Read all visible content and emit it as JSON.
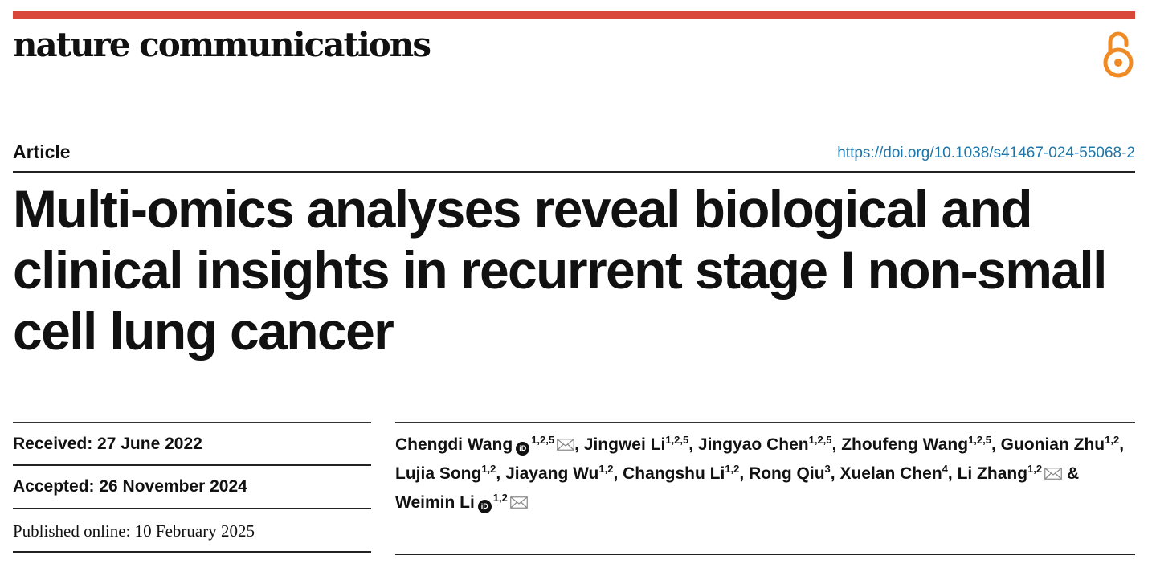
{
  "journal": {
    "name": "nature communications"
  },
  "header": {
    "article_type": "Article",
    "doi": "https://doi.org/10.1038/s41467-024-55068-2"
  },
  "title": "Multi-omics analyses reveal biological and clinical insights in recurrent stage I non-small cell lung cancer",
  "dates": {
    "received": "Received: 27 June 2022",
    "accepted": "Accepted: 26 November 2024",
    "published": "Published online: 10 February 2025"
  },
  "authors": [
    {
      "name": "Chengdi Wang",
      "affil": "1,2,5",
      "orcid": true,
      "corresponding": true
    },
    {
      "name": "Jingwei Li",
      "affil": "1,2,5",
      "orcid": false,
      "corresponding": false
    },
    {
      "name": "Jingyao Chen",
      "affil": "1,2,5",
      "orcid": false,
      "corresponding": false
    },
    {
      "name": "Zhoufeng Wang",
      "affil": "1,2,5",
      "orcid": false,
      "corresponding": false
    },
    {
      "name": "Guonian Zhu",
      "affil": "1,2",
      "orcid": false,
      "corresponding": false
    },
    {
      "name": "Lujia Song",
      "affil": "1,2",
      "orcid": false,
      "corresponding": false
    },
    {
      "name": "Jiayang Wu",
      "affil": "1,2",
      "orcid": false,
      "corresponding": false
    },
    {
      "name": "Changshu Li",
      "affil": "1,2",
      "orcid": false,
      "corresponding": false
    },
    {
      "name": "Rong Qiu",
      "affil": "3",
      "orcid": false,
      "corresponding": false
    },
    {
      "name": "Xuelan Chen",
      "affil": "4",
      "orcid": false,
      "corresponding": false
    },
    {
      "name": "Li Zhang",
      "affil": "1,2",
      "orcid": false,
      "corresponding": true
    },
    {
      "name": "Weimin Li",
      "affil": "1,2",
      "orcid": true,
      "corresponding": true
    }
  ],
  "icons": {
    "open_access": "open-access-icon",
    "orcid": "orcid-icon",
    "mail": "mail-icon"
  },
  "colors": {
    "top_bar": "#d9473a",
    "open_access": "#f08a24",
    "doi_link": "#1f76a8"
  }
}
